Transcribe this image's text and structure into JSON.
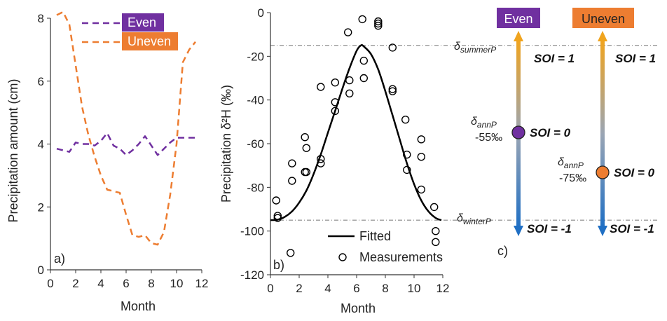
{
  "colors": {
    "even": "#7030A0",
    "uneven": "#ED7D31",
    "fitted": "#000000",
    "ref_line": "#777777",
    "arrow_top": "#F0A41E",
    "arrow_mid": "#9AA5B4",
    "arrow_bottom": "#1F6FC4"
  },
  "chart_data": [
    {
      "type": "line",
      "panel_label": "a)",
      "xlabel": "Month",
      "ylabel": "Precipitation amount (cm)",
      "xlim": [
        0,
        12
      ],
      "ylim": [
        0,
        8
      ],
      "xticks": [
        "0",
        "2",
        "4",
        "6",
        "8",
        "10",
        "12"
      ],
      "yticks": [
        "0",
        "2",
        "4",
        "6",
        "8"
      ],
      "legend_position": "top-right",
      "series": [
        {
          "name": "Even",
          "style": "dashed",
          "x": [
            0.5,
            1.5,
            2.0,
            2.5,
            3.0,
            3.5,
            4.0,
            4.5,
            5.0,
            5.5,
            6.0,
            6.5,
            7.0,
            7.5,
            8.0,
            8.5,
            9.0,
            9.5,
            10.0,
            10.5,
            11.0,
            11.5
          ],
          "values": [
            3.85,
            3.75,
            4.05,
            4.0,
            4.0,
            3.95,
            4.1,
            4.35,
            3.95,
            3.85,
            3.65,
            3.8,
            4.0,
            4.25,
            3.95,
            3.65,
            3.85,
            4.05,
            4.2,
            4.2,
            4.2,
            4.2
          ]
        },
        {
          "name": "Uneven",
          "style": "dashed",
          "x": [
            0.5,
            1.0,
            1.5,
            2.0,
            2.5,
            3.0,
            3.5,
            4.0,
            4.5,
            5.0,
            5.5,
            6.0,
            6.5,
            7.0,
            7.5,
            8.0,
            8.5,
            9.0,
            9.5,
            10.0,
            10.5,
            11.0,
            11.5
          ],
          "values": [
            8.1,
            8.2,
            7.8,
            6.5,
            5.2,
            4.3,
            3.6,
            3.0,
            2.55,
            2.5,
            2.45,
            1.75,
            1.1,
            1.05,
            1.1,
            0.85,
            0.8,
            1.2,
            2.4,
            4.0,
            6.6,
            7.0,
            7.25
          ]
        }
      ]
    },
    {
      "type": "scatter",
      "panel_label": "b)",
      "xlabel": "Month",
      "ylabel": "Precipitation δ²H (‰)",
      "xlim": [
        0,
        12
      ],
      "ylim": [
        -120,
        0
      ],
      "xticks": [
        "0",
        "2",
        "4",
        "6",
        "8",
        "10",
        "12"
      ],
      "yticks": [
        "0",
        "-20",
        "-40",
        "-60",
        "-80",
        "-100",
        "-120"
      ],
      "legend_position": "bottom-right",
      "reference_lines": [
        {
          "label_main": "δ",
          "label_sub": "summerP",
          "y": -15
        },
        {
          "label_main": "δ",
          "label_sub": "winterP",
          "y": -95
        }
      ],
      "series": [
        {
          "name": "Fitted",
          "kind": "line",
          "x": [
            0,
            0.5,
            1,
            1.5,
            2,
            2.5,
            3,
            3.5,
            4,
            4.5,
            5,
            5.5,
            6,
            6.3,
            6.5,
            7,
            7.5,
            8,
            8.5,
            9,
            9.5,
            10,
            10.5,
            11,
            11.5,
            11.9
          ],
          "values": [
            -95,
            -94.8,
            -93.5,
            -91,
            -87,
            -81.5,
            -74,
            -65,
            -55,
            -45,
            -35,
            -25.5,
            -17.5,
            -15,
            -15.5,
            -19,
            -26,
            -36,
            -47,
            -58,
            -69,
            -78.5,
            -86,
            -91,
            -94,
            -95
          ]
        },
        {
          "name": "Measurements",
          "kind": "points",
          "x": [
            0.4,
            0.5,
            0.5,
            1.4,
            1.5,
            1.5,
            2.4,
            2.4,
            2.5,
            2.5,
            3.5,
            3.5,
            3.5,
            4.5,
            4.5,
            4.5,
            5.4,
            5.5,
            5.5,
            6.4,
            6.5,
            6.5,
            7.5,
            7.5,
            7.5,
            8.5,
            8.5,
            8.5,
            9.4,
            9.5,
            9.5,
            10.5,
            10.5,
            10.5,
            11.4,
            11.5,
            11.5
          ],
          "values": [
            -86,
            -93,
            -94,
            -110,
            -77,
            -69,
            -73,
            -57,
            -62,
            -73,
            -67,
            -69,
            -34,
            -32,
            -41,
            -45,
            -9,
            -31,
            -37,
            -3,
            -22,
            -30,
            -4,
            -6,
            -5,
            -16,
            -35,
            -36,
            -49,
            -65,
            -72,
            -58,
            -66,
            -81,
            -89,
            -100,
            -105
          ]
        }
      ]
    }
  ],
  "panel_c": {
    "label": "c)",
    "columns": [
      {
        "name": "Even",
        "soi_top": "SOI = 1",
        "soi_bottom": "SOI = -1",
        "marker_soi": "SOI = 0",
        "delta_main": "δ",
        "delta_sub": "annP",
        "delta_value": "-55‰",
        "marker_color": "#7030A0",
        "marker_value": -55
      },
      {
        "name": "Uneven",
        "soi_top": "SOI = 1",
        "soi_bottom": "SOI = -1",
        "marker_soi": "SOI = 0",
        "delta_main": "δ",
        "delta_sub": "annP",
        "delta_value": "-75‰",
        "marker_color": "#ED7D31",
        "marker_value": -75
      }
    ]
  }
}
